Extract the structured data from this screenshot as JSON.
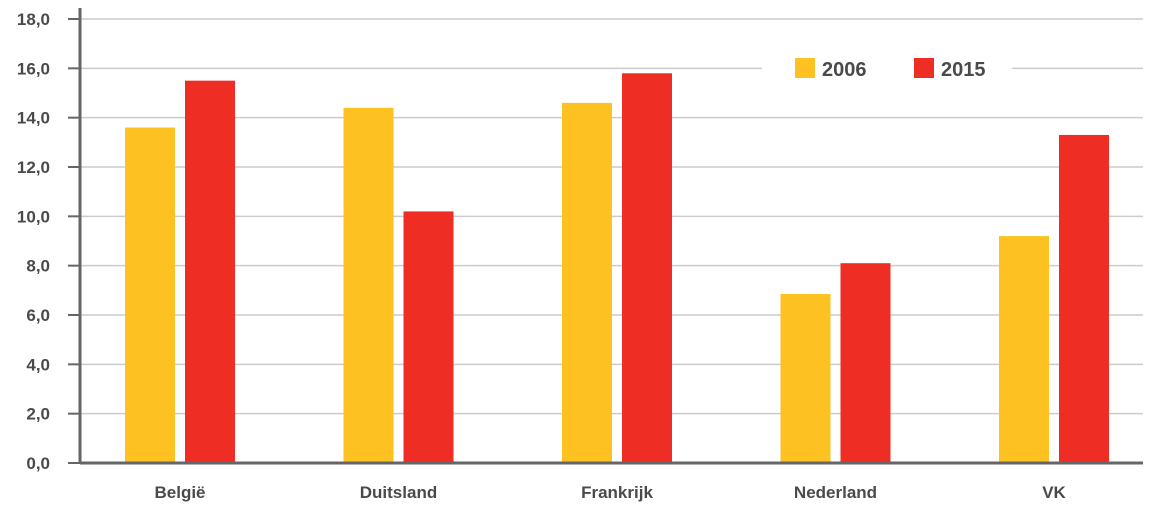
{
  "chart_data": {
    "type": "bar",
    "title": "",
    "xlabel": "",
    "ylabel": "",
    "categories": [
      "België",
      "Duitsland",
      "Frankrijk",
      "Nederland",
      "VK"
    ],
    "series": [
      {
        "name": "2006",
        "color": "#FDC221",
        "values": [
          13.6,
          14.4,
          14.6,
          6.85,
          9.2
        ]
      },
      {
        "name": "2015",
        "color": "#EE2E24",
        "values": [
          15.5,
          10.2,
          15.8,
          8.1,
          13.3
        ]
      }
    ],
    "ylim": [
      0,
      18
    ],
    "yticks": [
      "0,0",
      "2,0",
      "4,0",
      "6,0",
      "8,0",
      "10,0",
      "12,0",
      "14,0",
      "16,0",
      "18,0"
    ],
    "grid": true,
    "legend_position": "top-right",
    "axis_color": "#666666",
    "grid_color": "#cccccc"
  }
}
